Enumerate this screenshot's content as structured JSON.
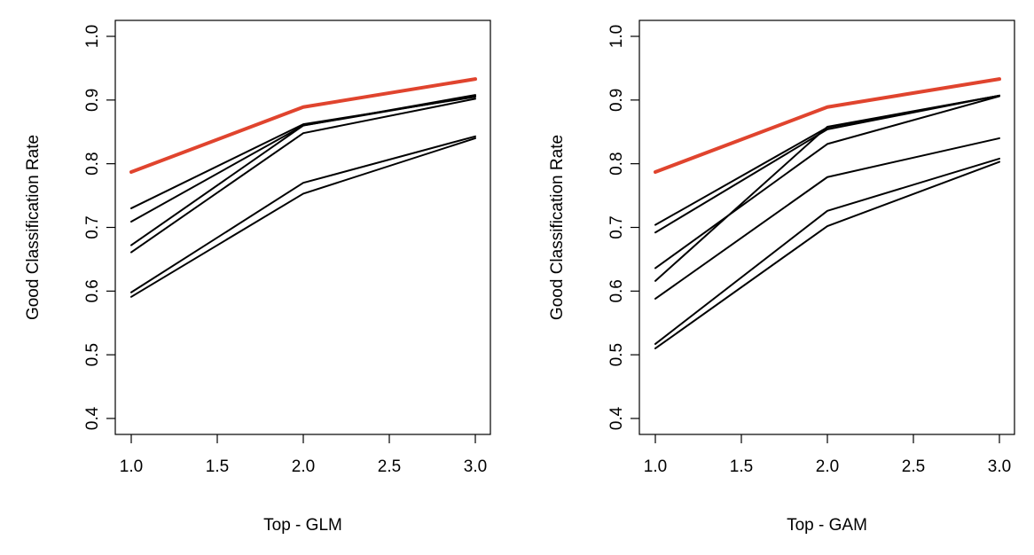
{
  "chart_data": [
    {
      "type": "line",
      "title": "",
      "xlabel": "Top - GLM",
      "ylabel": "Good Classification Rate",
      "xlim": [
        1.0,
        3.0
      ],
      "ylim": [
        0.4,
        1.0
      ],
      "x": [
        1.0,
        2.0,
        3.0
      ],
      "xticks": [
        "1.0",
        "1.5",
        "2.0",
        "2.5",
        "3.0"
      ],
      "yticks": [
        "0.4",
        "0.5",
        "0.6",
        "0.7",
        "0.8",
        "0.9",
        "1.0"
      ],
      "grid": false,
      "highlight_color": "#E0442E",
      "series_color": "#000000",
      "series": [
        {
          "values": [
            0.73,
            0.862,
            0.905
          ],
          "highlight": false
        },
        {
          "values": [
            0.709,
            0.86,
            0.908
          ],
          "highlight": false
        },
        {
          "values": [
            0.672,
            0.86,
            0.906
          ],
          "highlight": false
        },
        {
          "values": [
            0.661,
            0.848,
            0.902
          ],
          "highlight": false
        },
        {
          "values": [
            0.598,
            0.77,
            0.843
          ],
          "highlight": false
        },
        {
          "values": [
            0.591,
            0.753,
            0.84
          ],
          "highlight": false
        },
        {
          "values": [
            0.787,
            0.889,
            0.933
          ],
          "highlight": true
        }
      ]
    },
    {
      "type": "line",
      "title": "",
      "xlabel": "Top - GAM",
      "ylabel": "Good Classification Rate",
      "xlim": [
        1.0,
        3.0
      ],
      "ylim": [
        0.4,
        1.0
      ],
      "x": [
        1.0,
        2.0,
        3.0
      ],
      "xticks": [
        "1.0",
        "1.5",
        "2.0",
        "2.5",
        "3.0"
      ],
      "yticks": [
        "0.4",
        "0.5",
        "0.6",
        "0.7",
        "0.8",
        "0.9",
        "1.0"
      ],
      "grid": false,
      "highlight_color": "#E0442E",
      "series_color": "#000000",
      "series": [
        {
          "values": [
            0.704,
            0.857,
            0.907
          ],
          "highlight": false
        },
        {
          "values": [
            0.692,
            0.854,
            0.907
          ],
          "highlight": false
        },
        {
          "values": [
            0.636,
            0.831,
            0.906
          ],
          "highlight": false
        },
        {
          "values": [
            0.616,
            0.858,
            0.907
          ],
          "highlight": false
        },
        {
          "values": [
            0.588,
            0.779,
            0.84
          ],
          "highlight": false
        },
        {
          "values": [
            0.517,
            0.726,
            0.808
          ],
          "highlight": false
        },
        {
          "values": [
            0.51,
            0.702,
            0.803
          ],
          "highlight": false
        },
        {
          "values": [
            0.787,
            0.889,
            0.933
          ],
          "highlight": true
        }
      ]
    }
  ]
}
